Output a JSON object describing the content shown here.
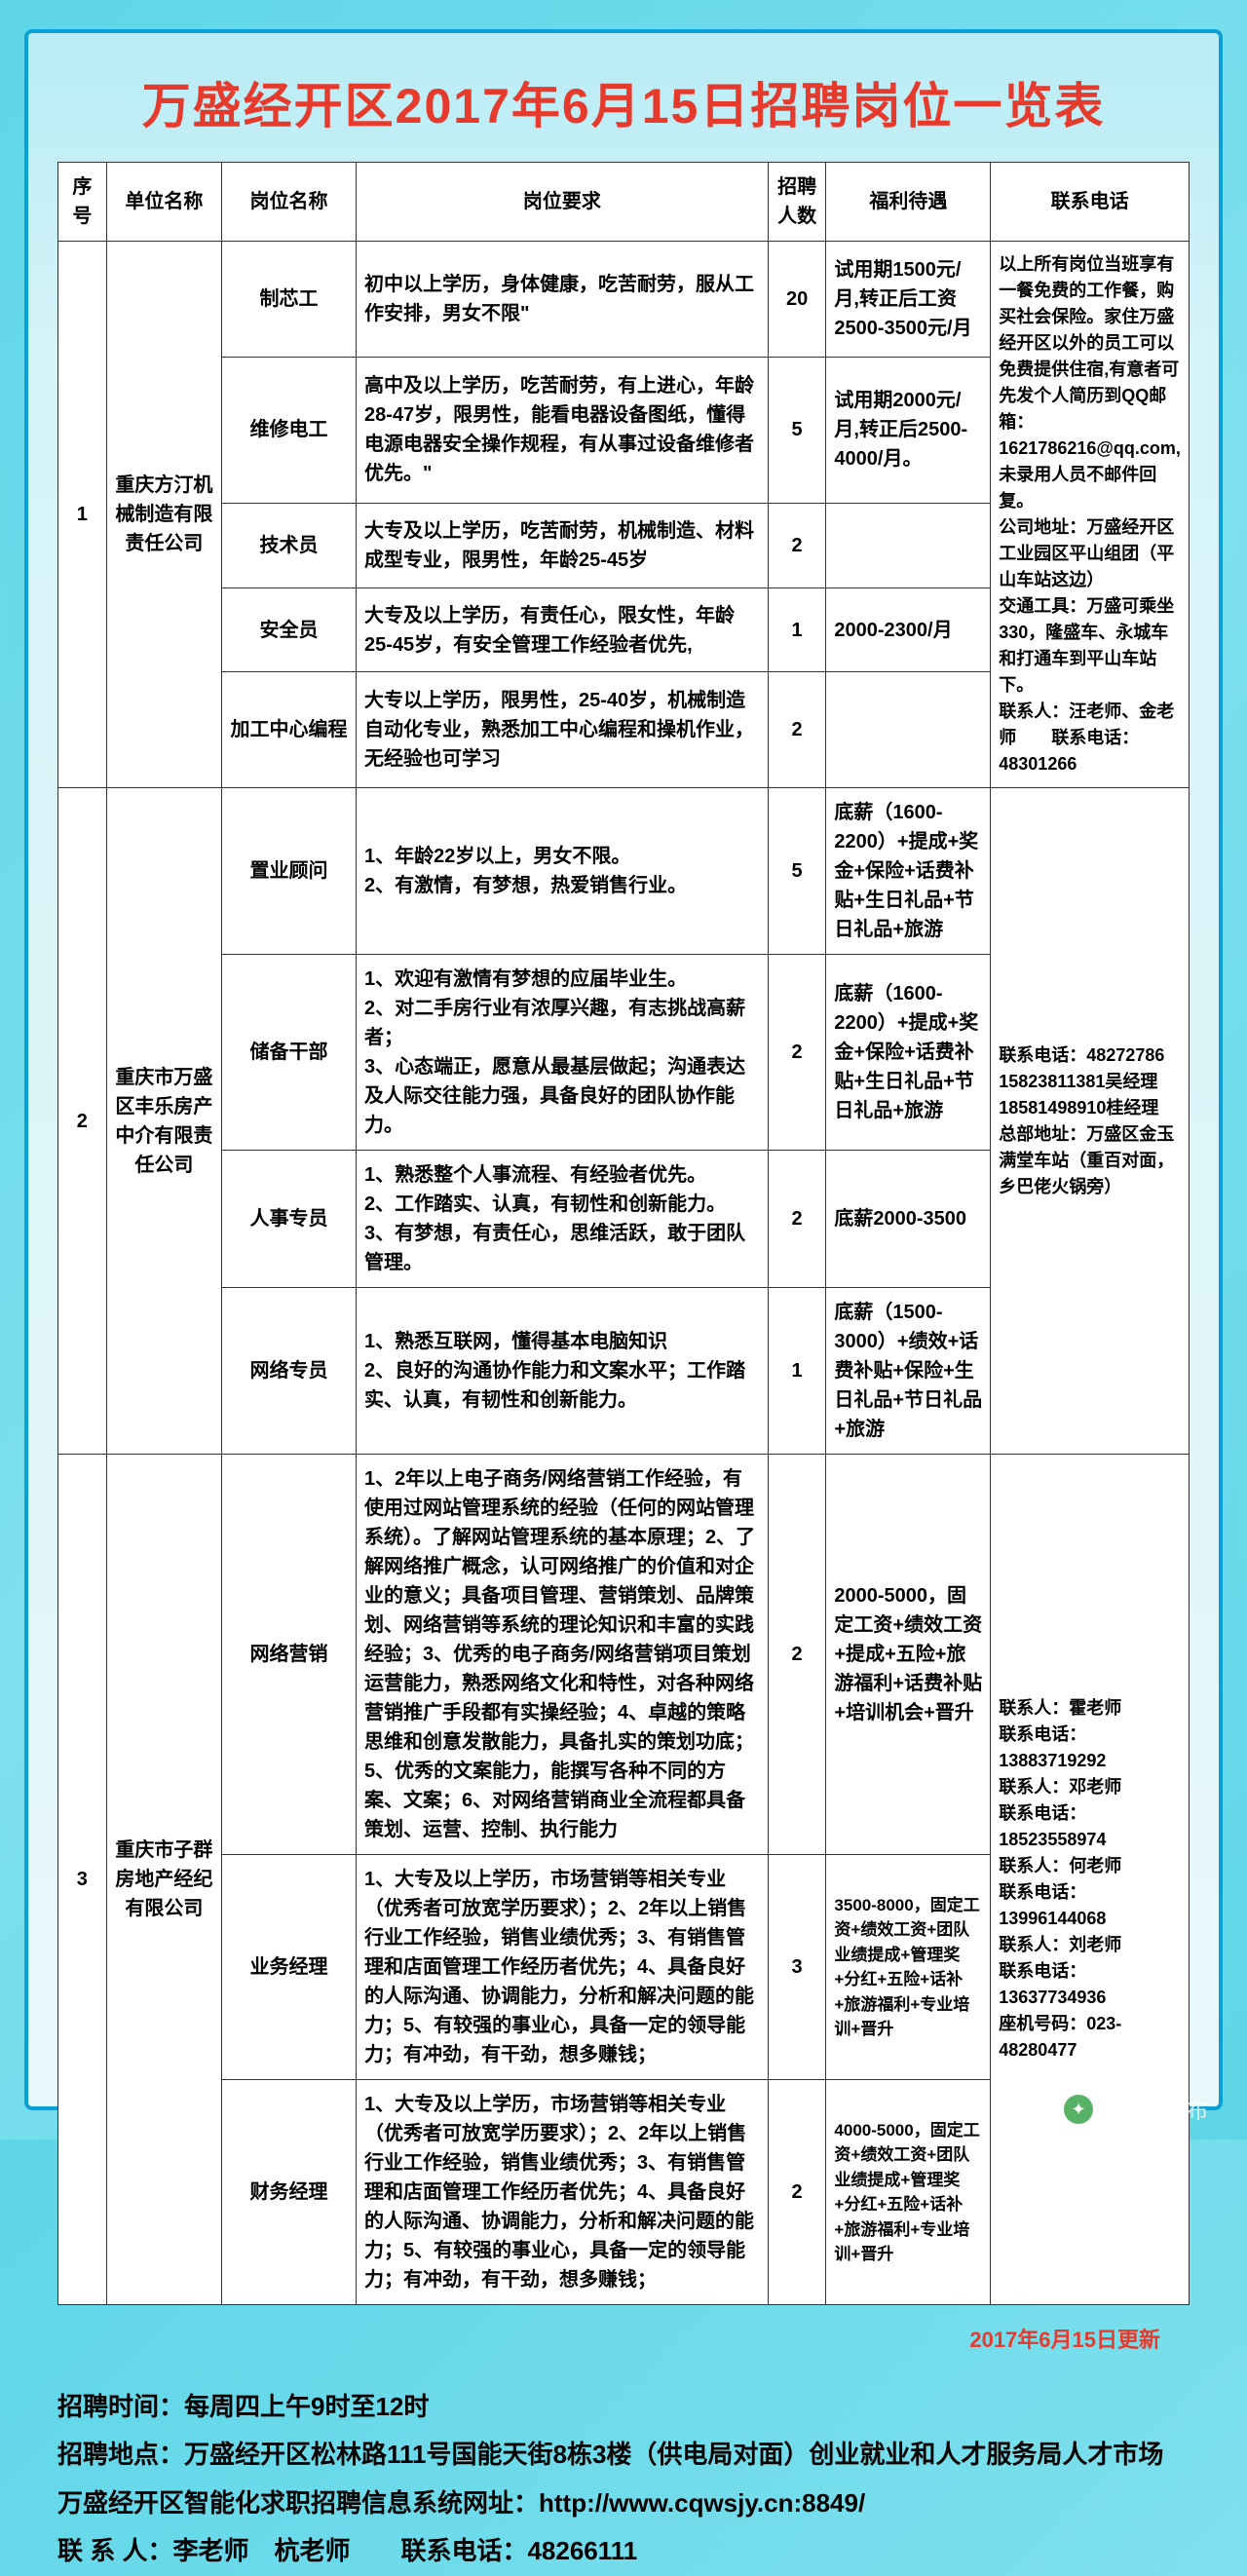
{
  "title": "万盛经开区2017年6月15日招聘岗位一览表",
  "headers": {
    "seq": "序号",
    "company": "单位名称",
    "position": "岗位名称",
    "requirement": "岗位要求",
    "count": "招聘人数",
    "benefit": "福利待遇",
    "contact": "联系电话"
  },
  "companies": [
    {
      "seq": "1",
      "name": "重庆方汀机械制造有限责任公司",
      "contact": "以上所有岗位当班享有一餐免费的工作餐，购买社会保险。家住万盛经开区以外的员工可以免费提供住宿,有意者可先发个人简历到QQ邮箱：1621786216@qq.com,未录用人员不邮件回复。\n公司地址：万盛经开区工业园区平山组团（平山车站这边）\n交通工具：万盛可乘坐330，隆盛车、永城车和打通车到平山车站下。\n联系人：汪老师、金老师　　联系电话：48301266",
      "positions": [
        {
          "name": "制芯工",
          "req": "初中以上学历，身体健康，吃苦耐劳，服从工作安排，男女不限\"",
          "count": "20",
          "benefit": "试用期1500元/月,转正后工资2500-3500元/月"
        },
        {
          "name": "维修电工",
          "req": "高中及以上学历，吃苦耐劳，有上进心，年龄28-47岁，限男性，能看电器设备图纸，懂得电源电器安全操作规程，有从事过设备维修者优先。\"",
          "count": "5",
          "benefit": "试用期2000元/月,转正后2500-4000/月。"
        },
        {
          "name": "技术员",
          "req": "大专及以上学历，吃苦耐劳，机械制造、材料成型专业，限男性，年龄25-45岁",
          "count": "2",
          "benefit": ""
        },
        {
          "name": "安全员",
          "req": "大专及以上学历，有责任心，限女性，年龄25-45岁，有安全管理工作经验者优先,",
          "count": "1",
          "benefit": "2000-2300/月"
        },
        {
          "name": "加工中心编程",
          "req": "大专以上学历，限男性，25-40岁，机械制造自动化专业，熟悉加工中心编程和操机作业，无经验也可学习",
          "count": "2",
          "benefit": ""
        }
      ]
    },
    {
      "seq": "2",
      "name": "重庆市万盛区丰乐房产中介有限责任公司",
      "contact": "联系电话：48272786\n15823811381吴经理\n18581498910桂经理\n总部地址：万盛区金玉满堂车站（重百对面，乡巴佬火锅旁）",
      "positions": [
        {
          "name": "置业顾问",
          "req": "1、年龄22岁以上，男女不限。\n2、有激情，有梦想，热爱销售行业。",
          "count": "5",
          "benefit": "底薪（1600-2200）+提成+奖金+保险+话费补贴+生日礼品+节日礼品+旅游"
        },
        {
          "name": "储备干部",
          "req": "1、欢迎有激情有梦想的应届毕业生。\n2、对二手房行业有浓厚兴趣，有志挑战高薪者；\n3、心态端正，愿意从最基层做起；沟通表达及人际交往能力强，具备良好的团队协作能力。",
          "count": "2",
          "benefit": "底薪（1600-2200）+提成+奖金+保险+话费补贴+生日礼品+节日礼品+旅游"
        },
        {
          "name": "人事专员",
          "req": "1、熟悉整个人事流程、有经验者优先。\n2、工作踏实、认真，有韧性和创新能力。\n3、有梦想，有责任心，思维活跃，敢于团队管理。",
          "count": "2",
          "benefit": "底薪2000-3500"
        },
        {
          "name": "网络专员",
          "req": "1、熟悉互联网，懂得基本电脑知识\n2、良好的沟通协作能力和文案水平；工作踏实、认真，有韧性和创新能力。",
          "count": "1",
          "benefit": "底薪（1500-3000）+绩效+话费补贴+保险+生日礼品+节日礼品+旅游"
        }
      ]
    },
    {
      "seq": "3",
      "name": "重庆市子群房地产经纪有限公司",
      "contact": "联系人：霍老师\n联系电话：13883719292\n联系人：邓老师\n联系电话：18523558974\n联系人：何老师\n联系电话：13996144068\n联系人：刘老师\n联系电话：13637734936\n座机号码：023-48280477",
      "positions": [
        {
          "name": "网络营销",
          "req": "1、2年以上电子商务/网络营销工作经验，有使用过网站管理系统的经验（任何的网站管理系统）。了解网站管理系统的基本原理；2、了解网络推广概念，认可网络推广的价值和对企业的意义；具备项目管理、营销策划、品牌策划、网络营销等系统的理论知识和丰富的实践经验；3、优秀的电子商务/网络营销项目策划运营能力，熟悉网络文化和特性，对各种网络营销推广手段都有实操经验；4、卓越的策略思维和创意发散能力，具备扎实的策划功底；5、优秀的文案能力，能撰写各种不同的方案、文案；6、对网络营销商业全流程都具备策划、运营、控制、执行能力",
          "count": "2",
          "benefit": "2000-5000，固定工资+绩效工资+提成+五险+旅游福利+话费补贴+培训机会+晋升"
        },
        {
          "name": "业务经理",
          "req": "1、大专及以上学历，市场营销等相关专业（优秀者可放宽学历要求）；2、2年以上销售行业工作经验，销售业绩优秀；3、有销售管理和店面管理工作经历者优先；4、具备良好的人际沟通、协调能力，分析和解决问题的能力；5、有较强的事业心，具备一定的领导能力；有冲劲，有干劲，想多赚钱；",
          "count": "3",
          "benefit": "3500-8000，固定工资+绩效工资+团队业绩提成+管理奖+分红+五险+话补+旅游福利+专业培训+晋升"
        },
        {
          "name": "财务经理",
          "req": "1、大专及以上学历，市场营销等相关专业（优秀者可放宽学历要求）；2、2年以上销售行业工作经验，销售业绩优秀；3、有销售管理和店面管理工作经历者优先；4、具备良好的人际沟通、协调能力，分析和解决问题的能力；5、有较强的事业心，具备一定的领导能力；有冲劲，有干劲，想多赚钱；",
          "count": "2",
          "benefit": "4000-5000，固定工资+绩效工资+团队业绩提成+管理奖+分红+五险+话补+旅游福利+专业培训+晋升"
        }
      ]
    }
  ],
  "update_note": "2017年6月15日更新",
  "footer": {
    "l1": "招聘时间：每周四上午9时至12时",
    "l2": "招聘地点：万盛经开区松林路111号国能天街8栋3楼（供电局对面）创业就业和人才服务局人才市场",
    "l3": "万盛经开区智能化求职招聘信息系统网址：http://www.cqwsjy.cn:8849/",
    "l4": "联 系 人：李老师　杭老师　　联系电话：48266111"
  },
  "watermark": "万盛微发布"
}
